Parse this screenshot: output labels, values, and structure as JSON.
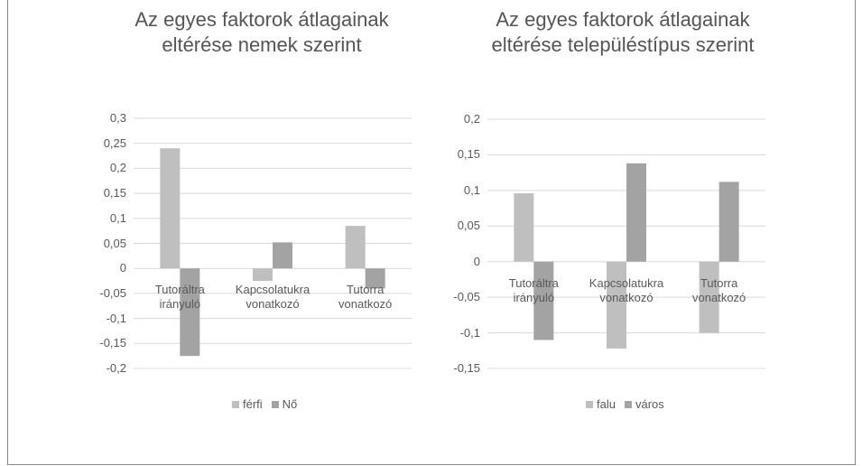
{
  "chart_data": [
    {
      "type": "bar",
      "title": "Az egyes faktorok átlagainak eltérése nemek szerint",
      "categories": [
        "Tutoráltra irányuló",
        "Kapcsolatukra vonatkozó",
        "Tutorra vonatkozó"
      ],
      "series": [
        {
          "name": "férfi",
          "color": "#bfbfbf",
          "values": [
            0.24,
            -0.025,
            0.085
          ]
        },
        {
          "name": "Nő",
          "color": "#a3a3a3",
          "values": [
            -0.175,
            0.052,
            -0.04
          ]
        }
      ],
      "ylim": [
        -0.2,
        0.3
      ],
      "yticks": [
        {
          "value": -0.2,
          "label": "-0,2"
        },
        {
          "value": -0.15,
          "label": "-0,15"
        },
        {
          "value": -0.1,
          "label": "-0,1"
        },
        {
          "value": -0.05,
          "label": "-0,05"
        },
        0,
        {
          "value": 0.05,
          "label": "0,05"
        },
        {
          "value": 0.1,
          "label": "0,1"
        },
        {
          "value": 0.15,
          "label": "0,15"
        },
        {
          "value": 0.2,
          "label": "0,2"
        },
        {
          "value": 0.25,
          "label": "0,25"
        },
        {
          "value": 0.3,
          "label": "0,3"
        }
      ],
      "grid": true,
      "legend": "bottom"
    },
    {
      "type": "bar",
      "title": "Az egyes faktorok átlagainak eltérése településtípus szerint",
      "categories": [
        "Tutoráltra irányuló",
        "Kapcsolatukra vonatkozó",
        "Tutorra vonatkozó"
      ],
      "series": [
        {
          "name": "falu",
          "color": "#bfbfbf",
          "values": [
            0.096,
            -0.122,
            -0.1
          ]
        },
        {
          "name": "város",
          "color": "#a3a3a3",
          "values": [
            -0.11,
            0.138,
            0.112
          ]
        }
      ],
      "ylim": [
        -0.15,
        0.2
      ],
      "yticks": [
        {
          "value": -0.15,
          "label": "-0,15"
        },
        {
          "value": -0.1,
          "label": "-0,1"
        },
        {
          "value": -0.05,
          "label": "-0,05"
        },
        0,
        {
          "value": 0.05,
          "label": "0,05"
        },
        {
          "value": 0.1,
          "label": "0,1"
        },
        {
          "value": 0.15,
          "label": "0,15"
        },
        {
          "value": 0.2,
          "label": "0,2"
        }
      ],
      "grid": true,
      "legend": "bottom"
    }
  ]
}
